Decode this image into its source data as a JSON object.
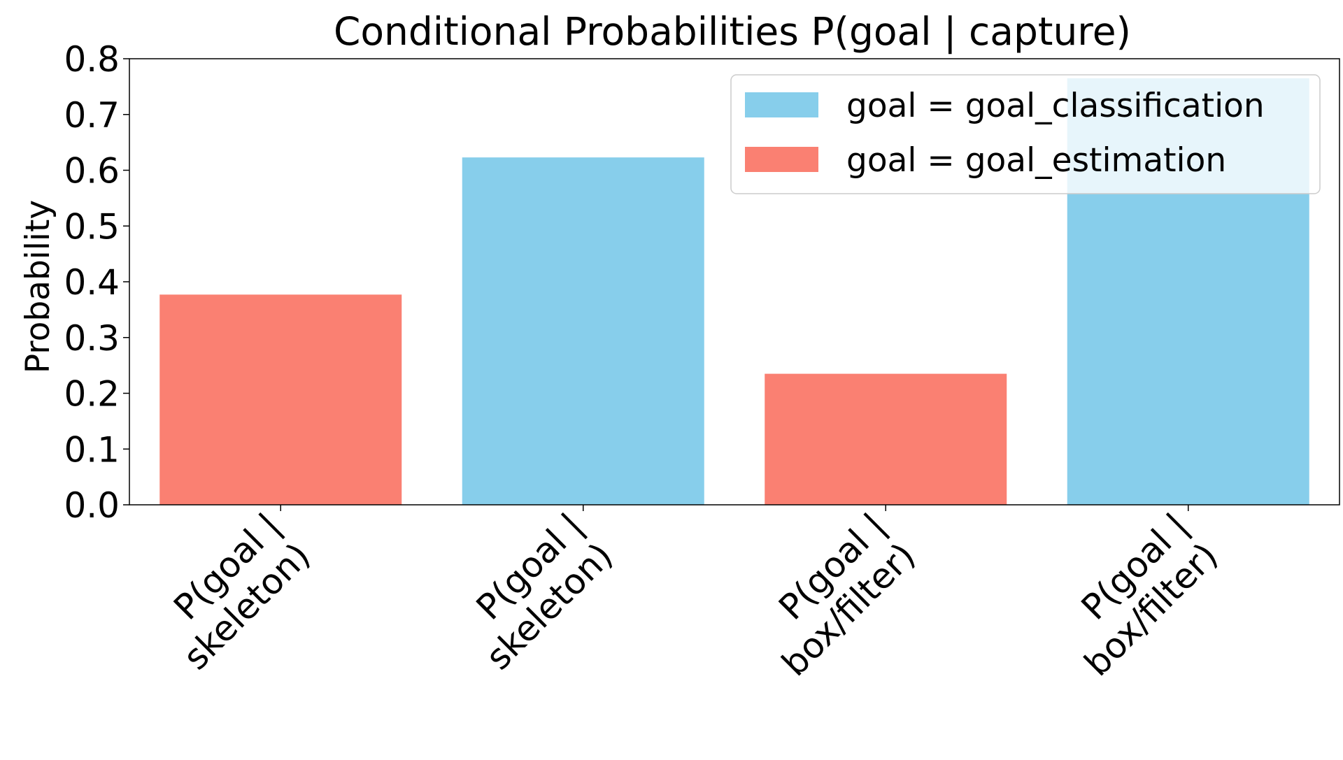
{
  "chart_data": {
    "type": "bar",
    "title": "Conditional Probabilities P(goal | capture)",
    "xlabel": "",
    "ylabel": "Probability",
    "ylim": [
      0,
      0.8
    ],
    "yticks": [
      "0.0",
      "0.1",
      "0.2",
      "0.3",
      "0.4",
      "0.5",
      "0.6",
      "0.7",
      "0.8"
    ],
    "grid": false,
    "legend_position": "top-right",
    "categories": [
      [
        "P(goal |",
        "skeleton)"
      ],
      [
        "P(goal |",
        "skeleton)"
      ],
      [
        "P(goal |",
        "box/filter)"
      ],
      [
        "P(goal |",
        "box/filter)"
      ]
    ],
    "series": [
      {
        "name": "goal = goal_classification",
        "color": "#87CEEB",
        "values": [
          null,
          0.623,
          null,
          0.765
        ]
      },
      {
        "name": "goal = goal_estimation",
        "color": "#FA8072",
        "values": [
          0.377,
          null,
          0.235,
          null
        ]
      }
    ]
  }
}
